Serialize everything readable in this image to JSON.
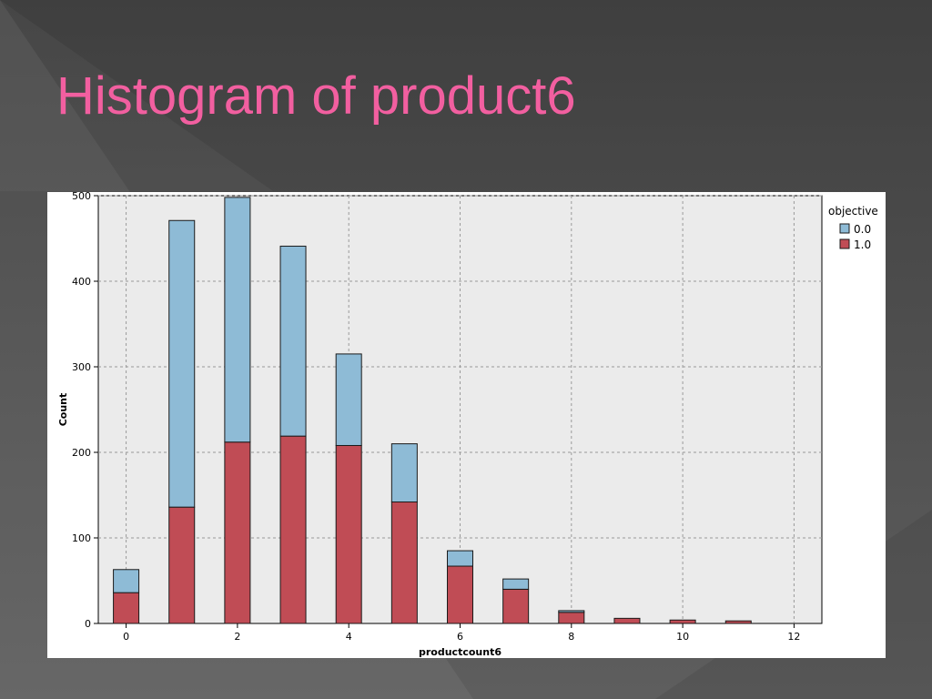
{
  "slide": {
    "title": "Histogram of product6"
  },
  "chart_data": {
    "type": "bar",
    "stacked": true,
    "xlabel": "productcount6",
    "ylabel": "Count",
    "xlim": [
      -0.5,
      12.5
    ],
    "ylim": [
      0,
      500
    ],
    "xticks": [
      0,
      2,
      4,
      6,
      8,
      10,
      12
    ],
    "yticks": [
      0,
      100,
      200,
      300,
      400,
      500
    ],
    "grid": true,
    "legend": {
      "title": "objective",
      "position": "right"
    },
    "x": [
      0,
      1,
      2,
      3,
      4,
      5,
      6,
      7,
      8,
      9,
      10,
      11
    ],
    "series": [
      {
        "name": "1.0",
        "color": "#c04c55",
        "values": [
          36,
          136,
          212,
          219,
          208,
          142,
          67,
          40,
          13,
          6,
          4,
          3
        ]
      },
      {
        "name": "0.0",
        "color": "#8ebbd6",
        "values": [
          27,
          335,
          286,
          222,
          107,
          68,
          18,
          12,
          2,
          0,
          0,
          0
        ]
      }
    ]
  }
}
